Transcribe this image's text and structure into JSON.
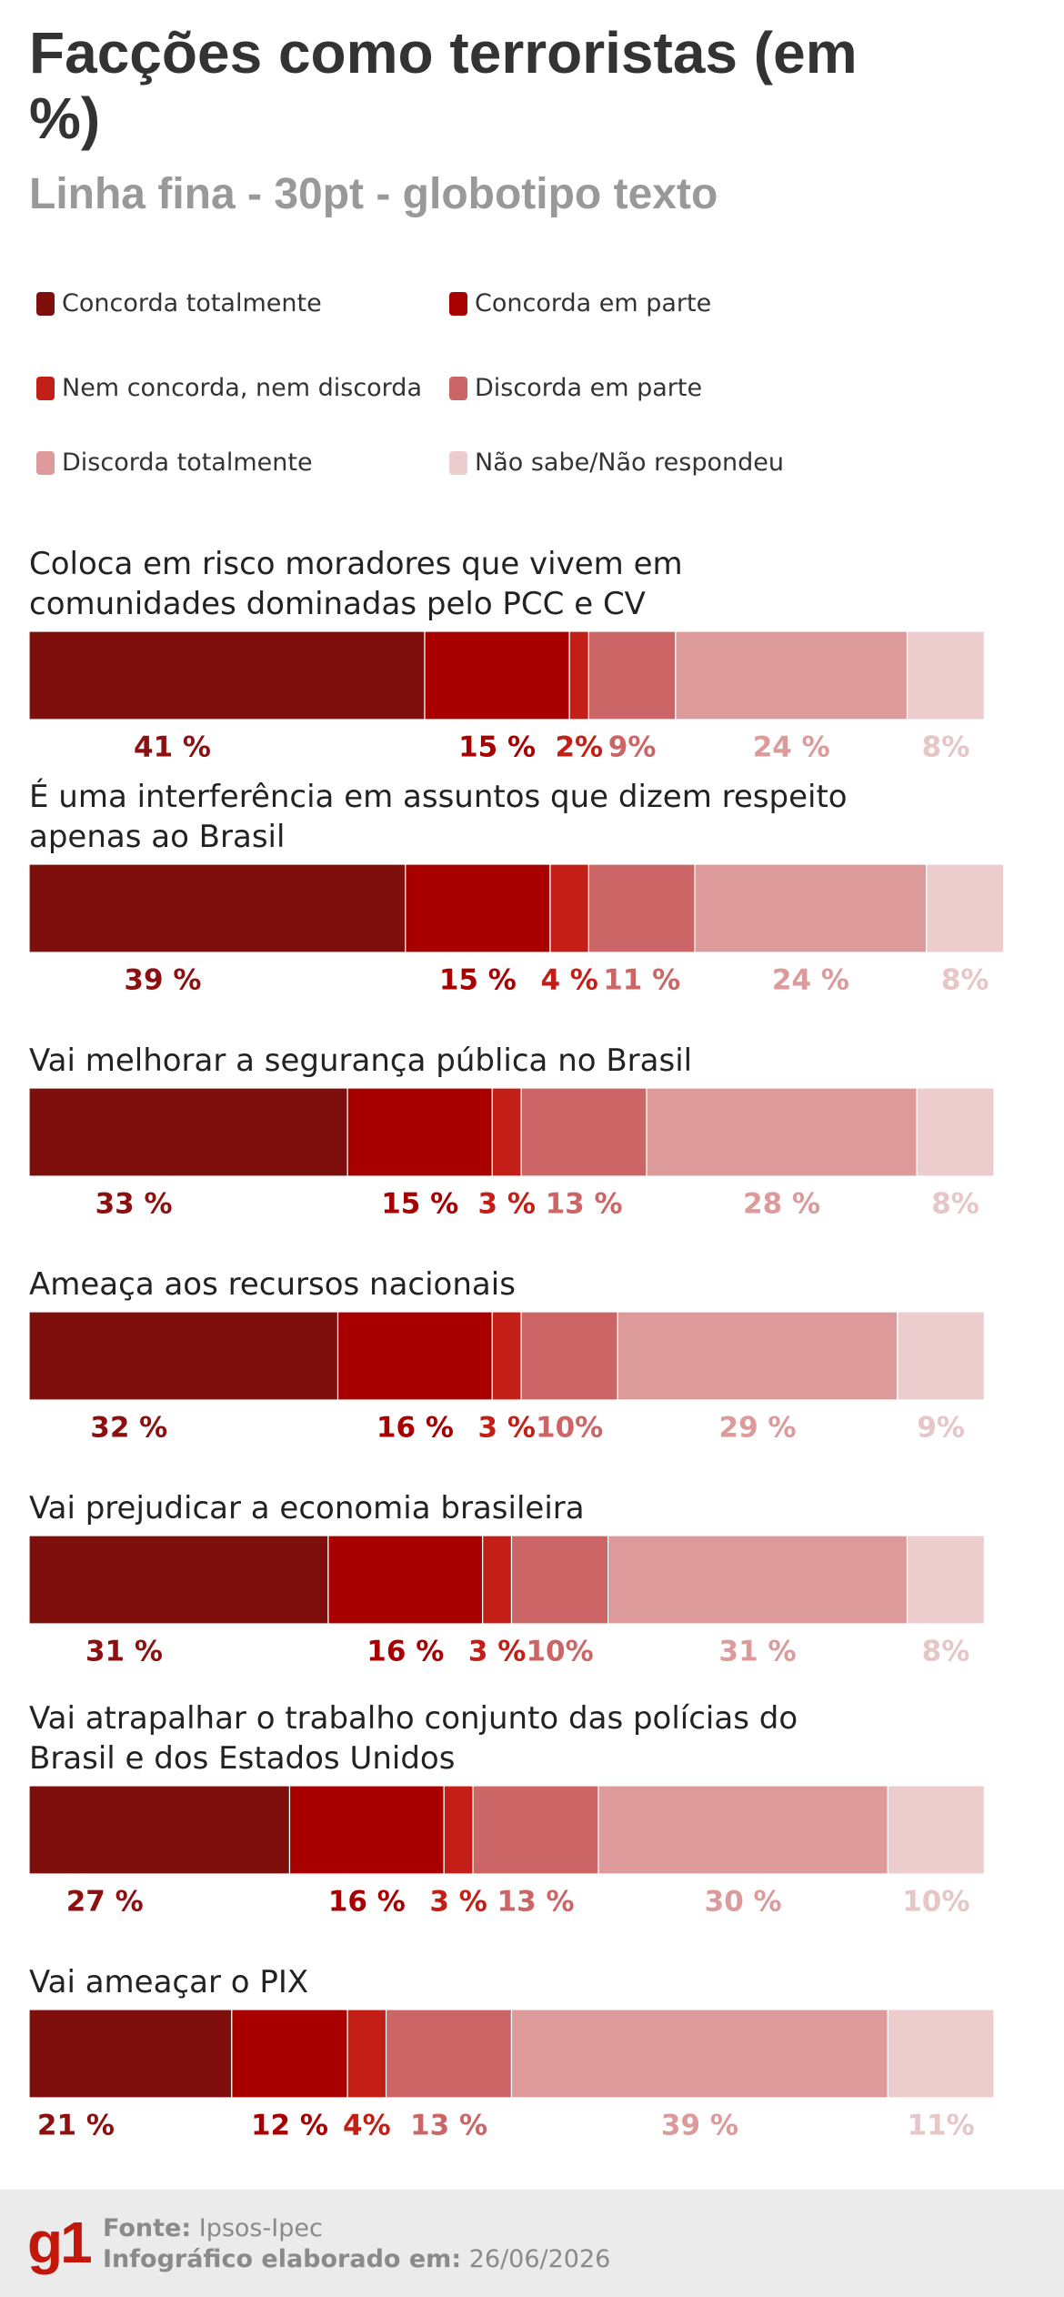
{
  "chart_data": {
    "type": "bar",
    "orientation": "horizontal",
    "stacked": true,
    "title": "Facções como terroristas (em %)",
    "subtitle": "Linha fina - 30pt - globotipo texto",
    "categories": [
      "Coloca em risco moradores que vivem em comunidades dominadas pelo PCC e CV",
      "É uma interferência em assuntos que dizem respeito apenas ao Brasil",
      "Vai melhorar a segurança pública no Brasil",
      "Ameaça aos recursos nacionais",
      "Vai prejudicar a economia brasileira",
      "Vai atrapalhar o trabalho conjunto das polícias do Brasil e dos Estados Unidos",
      "Vai ameaçar o PIX"
    ],
    "xlim": [
      0,
      100
    ],
    "series": [
      {
        "name": "Concorda totalmente",
        "color": "#7e0f0c",
        "label_color": "#8c1010",
        "values": [
          41,
          39,
          33,
          32,
          31,
          27,
          21
        ],
        "value_labels": [
          "41 %",
          "39 %",
          "33 %",
          "32 %",
          "31 %",
          "27 %",
          "21 %"
        ]
      },
      {
        "name": "Concorda em parte",
        "color": "#a80000",
        "label_color": "#a80000",
        "values": [
          15,
          15,
          15,
          16,
          16,
          16,
          12
        ],
        "value_labels": [
          "15 %",
          "15 %",
          "15 %",
          "16 %",
          "16 %",
          "16 %",
          "12 %"
        ]
      },
      {
        "name": "Nem concorda, nem discorda",
        "color": "#c41f17",
        "label_color": "#c41f17",
        "values": [
          2,
          4,
          3,
          3,
          3,
          3,
          4
        ],
        "value_labels": [
          "2%",
          "4 %",
          "3 %",
          "3 %",
          "3 %",
          "3 %",
          "4%"
        ]
      },
      {
        "name": "Discorda em parte",
        "color": "#cc6666",
        "label_color": "#cc6666",
        "values": [
          9,
          11,
          13,
          10,
          10,
          13,
          13
        ],
        "value_labels": [
          "9%",
          "11 %",
          "13 %",
          "10%",
          "10%",
          "13 %",
          "13 %"
        ]
      },
      {
        "name": "Discorda totalmente",
        "color": "#dc9a9a",
        "label_color": "#dc9a9a",
        "values": [
          24,
          24,
          28,
          29,
          31,
          30,
          39
        ],
        "value_labels": [
          "24 %",
          "24 %",
          "28 %",
          "29 %",
          "31 %",
          "30 %",
          "39 %"
        ]
      },
      {
        "name": "Não sabe/Não respondeu",
        "color": "#eccccc",
        "label_color": "#e6c6c6",
        "values": [
          8,
          8,
          8,
          9,
          8,
          10,
          11
        ],
        "value_labels": [
          "8%",
          "8%",
          "8%",
          "9%",
          "8%",
          "10%",
          "11%"
        ]
      }
    ]
  },
  "footer": {
    "logo": "g1",
    "source_label": "Fonte:",
    "source": "Ipsos-Ipec",
    "date_label": "Infográfico elaborado em:",
    "date": "26/06/2026"
  }
}
